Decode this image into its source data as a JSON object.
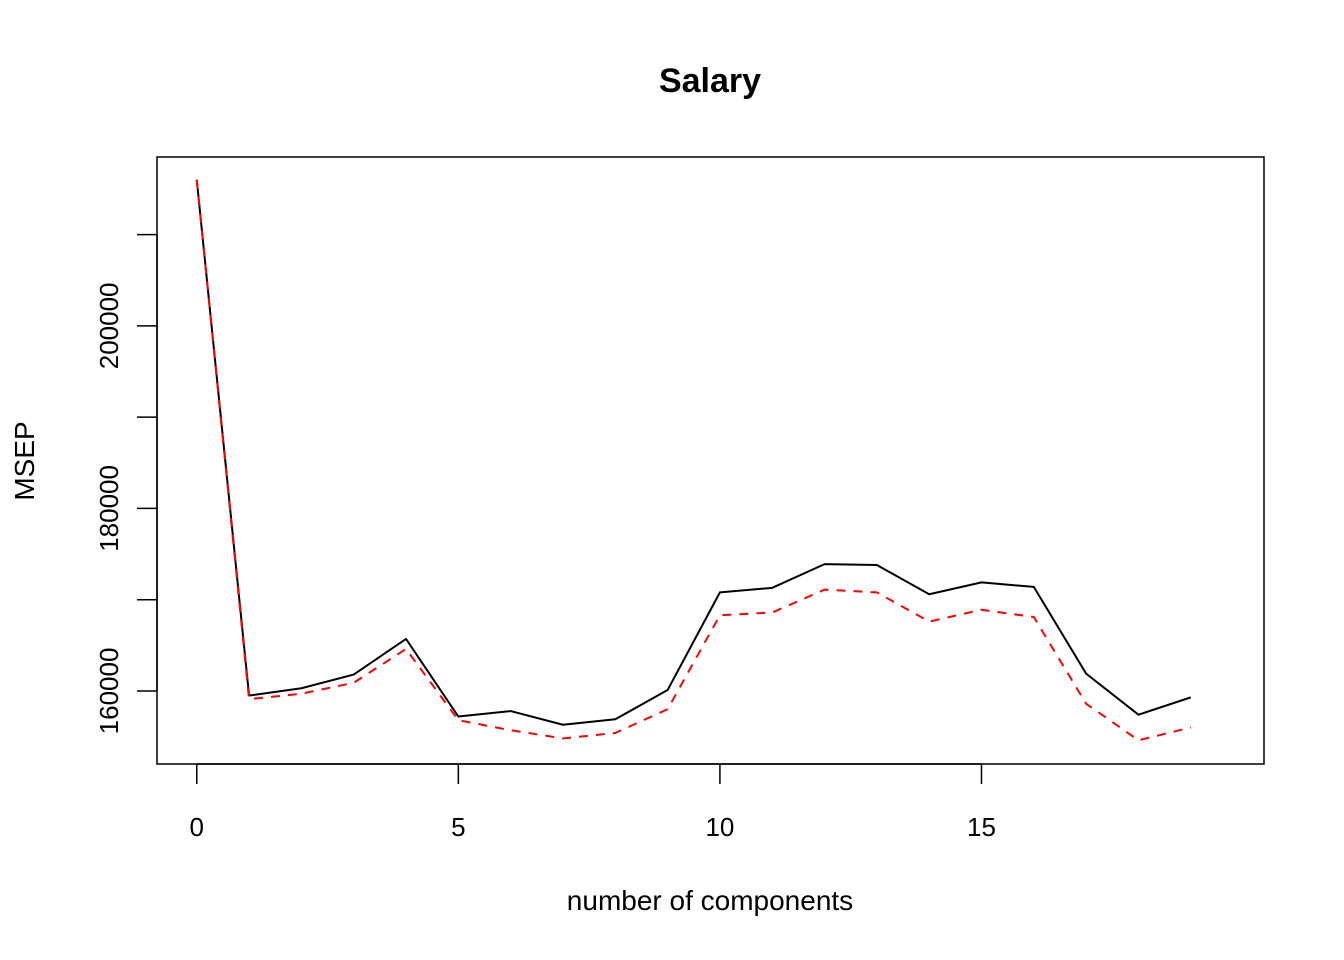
{
  "chart_data": {
    "type": "line",
    "title": "Salary",
    "xlabel": "number of components",
    "ylabel": "MSEP",
    "xlim": [
      -0.76,
      20.4
    ],
    "ylim": [
      152000,
      218500
    ],
    "x_ticks": [
      0,
      5,
      10,
      15
    ],
    "y_ticks": [
      160000,
      170000,
      180000,
      190000,
      200000,
      210000
    ],
    "y_tick_labels": [
      {
        "value": 160000,
        "label": "160000"
      },
      {
        "value": 180000,
        "label": "180000"
      },
      {
        "value": 200000,
        "label": "200000"
      }
    ],
    "grid": false,
    "legend": "none",
    "x": [
      0,
      1,
      2,
      3,
      4,
      5,
      6,
      7,
      8,
      9,
      10,
      11,
      12,
      13,
      14,
      15,
      16,
      17,
      18,
      19
    ],
    "series": [
      {
        "style": "solid",
        "color": "#000000",
        "values": [
          216000,
          159500,
          160300,
          161800,
          165700,
          157200,
          157800,
          156300,
          156900,
          160100,
          170800,
          171300,
          173900,
          173800,
          170600,
          171900,
          171400,
          161900,
          157400,
          159300
        ]
      },
      {
        "style": "dashed",
        "color": "#ff0000",
        "values": [
          216000,
          159100,
          159700,
          160900,
          164600,
          156800,
          155700,
          154800,
          155400,
          158000,
          168300,
          168600,
          171100,
          170800,
          167600,
          168900,
          168100,
          158600,
          154600,
          156000
        ]
      }
    ]
  }
}
